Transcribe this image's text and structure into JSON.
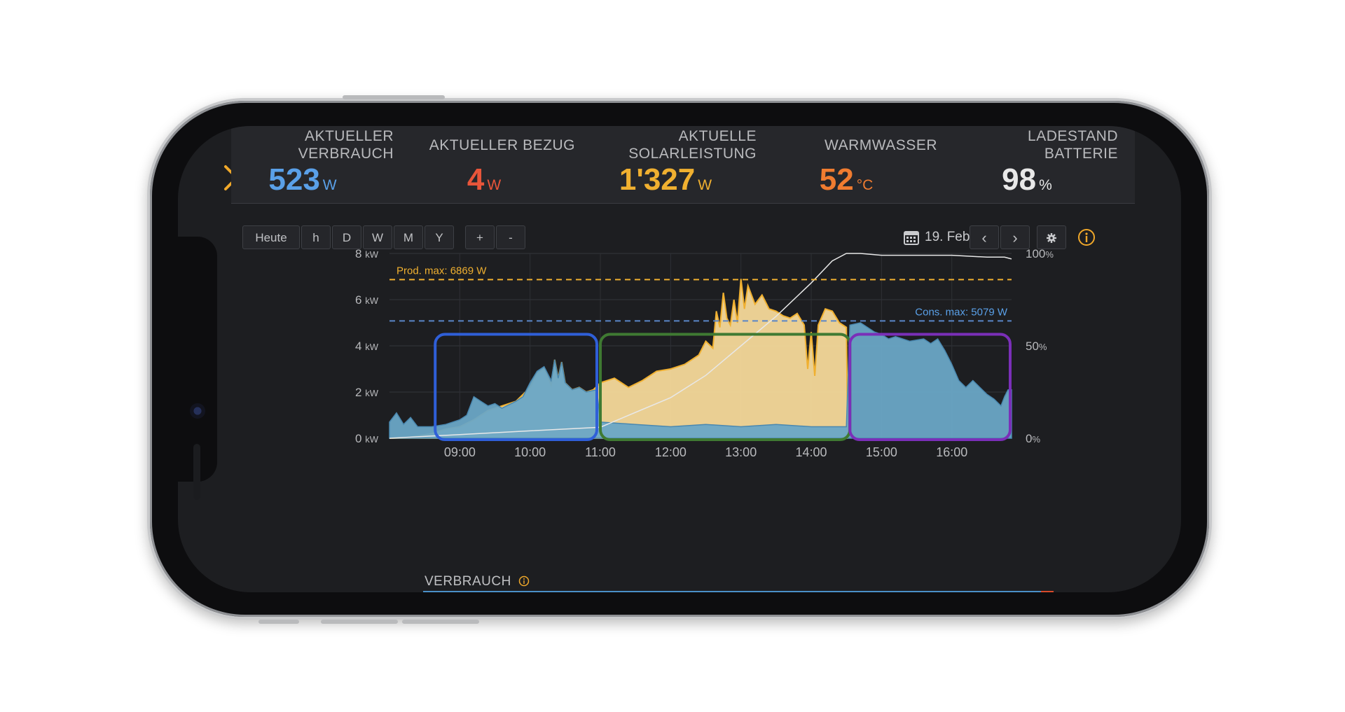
{
  "colors": {
    "consumption": "#5aa0e8",
    "import": "#e8553a",
    "solar": "#f0b030",
    "water": "#f07c30",
    "battery": "#e8e8e8",
    "close": "#f0a82a"
  },
  "header": {
    "stats": [
      {
        "label_lines": [
          "AKTUELLER",
          "VERBRAUCH"
        ],
        "value": "523",
        "unit": "W"
      },
      {
        "label_lines": [
          "AKTUELLER BEZUG"
        ],
        "value": "4",
        "unit": "W"
      },
      {
        "label_lines": [
          "AKTUELLE",
          "SOLARLEISTUNG"
        ],
        "value": "1'327",
        "unit": "W"
      },
      {
        "label_lines": [
          "WARMWASSER"
        ],
        "value": "52",
        "unit": "°C"
      },
      {
        "label_lines": [
          "LADESTAND",
          "BATTERIE"
        ],
        "value": "98",
        "unit": "%"
      }
    ]
  },
  "toolbar": {
    "range_buttons": [
      "Heute",
      "h",
      "D",
      "W",
      "M",
      "Y"
    ],
    "zoom_buttons": [
      "+",
      "-"
    ],
    "date": "19. Feb.",
    "prev": "‹",
    "next": "›"
  },
  "chart_data": {
    "type": "area",
    "x_ticks": [
      "09:00",
      "10:00",
      "11:00",
      "12:00",
      "13:00",
      "14:00",
      "15:00",
      "16:00"
    ],
    "y_left_ticks": [
      {
        "value": 0,
        "label": "0",
        "unit": "kW"
      },
      {
        "value": 2,
        "label": "2",
        "unit": "kW"
      },
      {
        "value": 4,
        "label": "4",
        "unit": "kW"
      },
      {
        "value": 6,
        "label": "6",
        "unit": "kW"
      },
      {
        "value": 8,
        "label": "8",
        "unit": "kW"
      }
    ],
    "y_right_ticks": [
      {
        "value": 0,
        "label": "0",
        "unit": "%"
      },
      {
        "value": 50,
        "label": "50",
        "unit": "%"
      },
      {
        "value": 100,
        "label": "100",
        "unit": "%"
      }
    ],
    "ylim": [
      0,
      8
    ],
    "xlim": [
      8.0,
      16.85
    ],
    "annotations": {
      "prod_max": {
        "text": "Prod. max: 6869 W",
        "value_kw": 6.869
      },
      "cons_max": {
        "text": "Cons. max: 5079 W",
        "value_kw": 5.079
      }
    },
    "production": [
      [
        8.0,
        0
      ],
      [
        8.3,
        0.05
      ],
      [
        8.6,
        0.2
      ],
      [
        8.8,
        0.4
      ],
      [
        9.0,
        0.5
      ],
      [
        9.2,
        0.8
      ],
      [
        9.4,
        1.2
      ],
      [
        9.6,
        1.4
      ],
      [
        9.8,
        1.6
      ],
      [
        10.0,
        2.2
      ],
      [
        10.1,
        2.8
      ],
      [
        10.2,
        3.0
      ],
      [
        10.3,
        2.3
      ],
      [
        10.35,
        3.4
      ],
      [
        10.4,
        2.6
      ],
      [
        10.45,
        3.3
      ],
      [
        10.5,
        2.4
      ],
      [
        10.6,
        2.1
      ],
      [
        10.7,
        2.2
      ],
      [
        10.8,
        2.0
      ],
      [
        10.9,
        2.1
      ],
      [
        11.0,
        2.4
      ],
      [
        11.2,
        2.6
      ],
      [
        11.4,
        2.2
      ],
      [
        11.6,
        2.5
      ],
      [
        11.8,
        2.9
      ],
      [
        12.0,
        3.0
      ],
      [
        12.2,
        3.2
      ],
      [
        12.4,
        3.6
      ],
      [
        12.5,
        4.2
      ],
      [
        12.6,
        3.9
      ],
      [
        12.65,
        5.5
      ],
      [
        12.7,
        4.8
      ],
      [
        12.75,
        6.3
      ],
      [
        12.8,
        5.2
      ],
      [
        12.85,
        4.9
      ],
      [
        12.9,
        6.0
      ],
      [
        12.95,
        5.0
      ],
      [
        13.0,
        6.9
      ],
      [
        13.05,
        5.6
      ],
      [
        13.1,
        6.6
      ],
      [
        13.2,
        5.8
      ],
      [
        13.3,
        6.2
      ],
      [
        13.4,
        5.6
      ],
      [
        13.5,
        5.5
      ],
      [
        13.6,
        5.3
      ],
      [
        13.7,
        5.2
      ],
      [
        13.8,
        5.4
      ],
      [
        13.9,
        4.9
      ],
      [
        13.95,
        3.0
      ],
      [
        14.0,
        4.6
      ],
      [
        14.05,
        2.7
      ],
      [
        14.1,
        4.9
      ],
      [
        14.2,
        5.6
      ],
      [
        14.3,
        5.5
      ],
      [
        14.4,
        5.0
      ],
      [
        14.5,
        4.8
      ],
      [
        14.52,
        0
      ]
    ],
    "consumption": [
      [
        8.0,
        0.7
      ],
      [
        8.1,
        1.1
      ],
      [
        8.2,
        0.6
      ],
      [
        8.3,
        0.9
      ],
      [
        8.4,
        0.5
      ],
      [
        8.6,
        0.5
      ],
      [
        8.8,
        0.6
      ],
      [
        9.0,
        0.8
      ],
      [
        9.1,
        1.0
      ],
      [
        9.2,
        1.8
      ],
      [
        9.3,
        1.6
      ],
      [
        9.4,
        1.4
      ],
      [
        9.5,
        1.5
      ],
      [
        9.6,
        1.3
      ],
      [
        9.8,
        1.6
      ],
      [
        9.9,
        1.8
      ],
      [
        10.0,
        2.4
      ],
      [
        10.1,
        2.9
      ],
      [
        10.2,
        3.1
      ],
      [
        10.3,
        2.5
      ],
      [
        10.35,
        3.4
      ],
      [
        10.4,
        2.6
      ],
      [
        10.45,
        3.3
      ],
      [
        10.5,
        2.4
      ],
      [
        10.6,
        2.1
      ],
      [
        10.7,
        2.2
      ],
      [
        10.8,
        2.0
      ],
      [
        10.95,
        2.1
      ],
      [
        11.0,
        0.7
      ],
      [
        11.5,
        0.6
      ],
      [
        12.0,
        0.5
      ],
      [
        12.5,
        0.6
      ],
      [
        13.0,
        0.5
      ],
      [
        13.5,
        0.6
      ],
      [
        14.0,
        0.5
      ],
      [
        14.5,
        0.5
      ],
      [
        14.55,
        4.9
      ],
      [
        14.7,
        5.0
      ],
      [
        14.8,
        4.8
      ],
      [
        14.9,
        4.6
      ],
      [
        15.0,
        4.5
      ],
      [
        15.1,
        4.3
      ],
      [
        15.2,
        4.4
      ],
      [
        15.4,
        4.2
      ],
      [
        15.6,
        4.3
      ],
      [
        15.7,
        4.1
      ],
      [
        15.8,
        4.3
      ],
      [
        15.9,
        3.8
      ],
      [
        16.0,
        3.2
      ],
      [
        16.1,
        2.5
      ],
      [
        16.2,
        2.2
      ],
      [
        16.3,
        2.5
      ],
      [
        16.4,
        2.2
      ],
      [
        16.5,
        1.9
      ],
      [
        16.6,
        1.7
      ],
      [
        16.7,
        1.4
      ],
      [
        16.75,
        1.8
      ],
      [
        16.8,
        2.1
      ],
      [
        16.85,
        2.1
      ]
    ],
    "battery_soc": [
      [
        8.0,
        0
      ],
      [
        9.0,
        2
      ],
      [
        10.0,
        4
      ],
      [
        11.0,
        6
      ],
      [
        11.5,
        14
      ],
      [
        12.0,
        22
      ],
      [
        12.5,
        34
      ],
      [
        13.0,
        50
      ],
      [
        13.5,
        66
      ],
      [
        14.0,
        84
      ],
      [
        14.3,
        96
      ],
      [
        14.5,
        100
      ],
      [
        14.7,
        100
      ],
      [
        15.0,
        99
      ],
      [
        15.5,
        99
      ],
      [
        16.0,
        99
      ],
      [
        16.5,
        98
      ],
      [
        16.75,
        98
      ],
      [
        16.85,
        97
      ]
    ],
    "highlight_boxes": [
      {
        "name": "morning",
        "x0": 8.65,
        "x1": 10.95,
        "color": "#2f5fd8"
      },
      {
        "name": "midday",
        "x0": 11.0,
        "x1": 14.55,
        "color": "#3f7a32"
      },
      {
        "name": "evening",
        "x0": 14.55,
        "x1": 16.95,
        "color": "#7a2fb8"
      }
    ],
    "highlight_box_ymax": 4.5
  },
  "footer": {
    "label": "VERBRAUCH"
  }
}
